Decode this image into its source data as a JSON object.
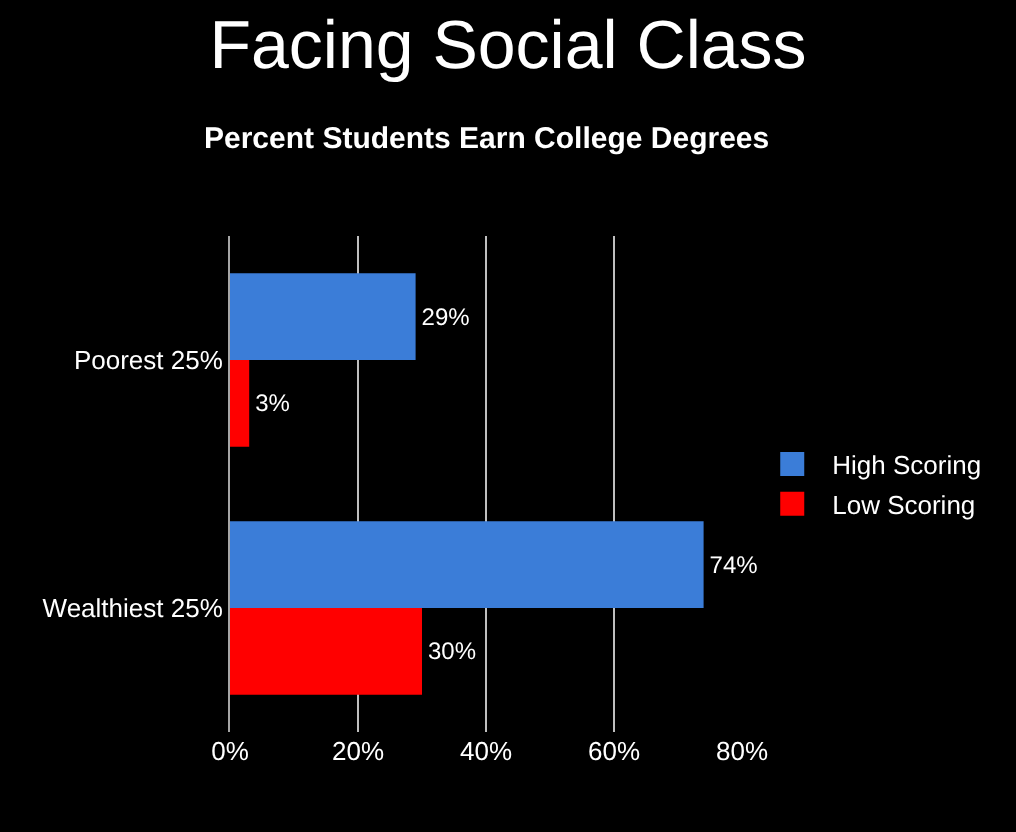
{
  "chart_data": {
    "type": "bar",
    "orientation": "horizontal",
    "title": "Facing Social Class",
    "subtitle": "Percent Students Earn College Degrees",
    "categories": [
      "Poorest 25%",
      "Wealthiest 25%"
    ],
    "series": [
      {
        "name": "High Scoring",
        "color": "#3b7dd8",
        "values": [
          29,
          74
        ],
        "value_labels": [
          "29%",
          "74%"
        ]
      },
      {
        "name": "Low Scoring",
        "color": "#ff0000",
        "values": [
          3,
          30
        ],
        "value_labels": [
          "3%",
          "30%"
        ]
      }
    ],
    "xlim": [
      0,
      80
    ],
    "xticks": [
      {
        "value": 0,
        "label": "0%"
      },
      {
        "value": 20,
        "label": "20%"
      },
      {
        "value": 40,
        "label": "40%"
      },
      {
        "value": 60,
        "label": "60%"
      },
      {
        "value": 80,
        "label": "80%"
      }
    ],
    "grid": "x",
    "legend": "right"
  }
}
